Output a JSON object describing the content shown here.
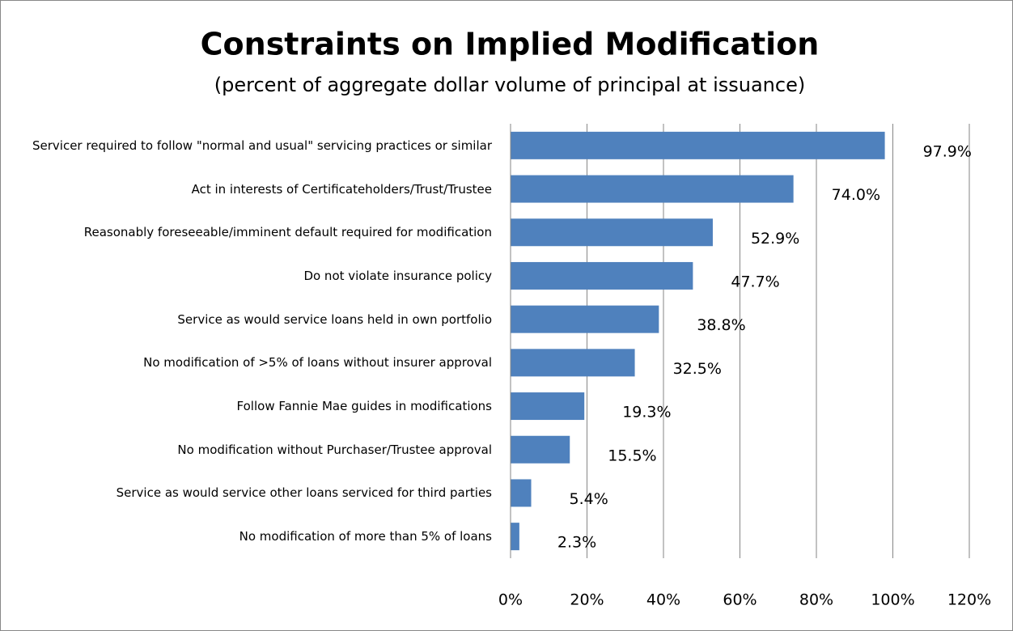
{
  "chart_data": {
    "type": "bar",
    "orientation": "horizontal",
    "title": "Constraints on Implied Modification",
    "subtitle": "(percent of aggregate dollar volume of principal at issuance)",
    "categories": [
      "Servicer required to follow \"normal and usual\" servicing practices or similar",
      "Act in interests of Certificateholders/Trust/Trustee",
      "Reasonably foreseeable/imminent default required for modification",
      "Do not violate insurance policy",
      "Service as would service loans held in own portfolio",
      "No modification of >5% of loans without insurer approval",
      "Follow Fannie Mae guides in modifications",
      "No modification without Purchaser/Trustee approval",
      "Service as would service other loans serviced for third parties",
      "No modification of more than 5% of loans"
    ],
    "values": [
      97.9,
      74.0,
      52.9,
      47.7,
      38.8,
      32.5,
      19.3,
      15.5,
      5.4,
      2.3
    ],
    "value_labels": [
      "97.9%",
      "74.0%",
      "52.9%",
      "47.7%",
      "38.8%",
      "32.5%",
      "19.3%",
      "15.5%",
      "5.4%",
      "2.3%"
    ],
    "color": "#4f81bd",
    "xlim": [
      0,
      120
    ],
    "xticks": [
      {
        "value": 0,
        "label": "0%"
      },
      {
        "value": 20,
        "label": "20%"
      },
      {
        "value": 40,
        "label": "40%"
      },
      {
        "value": 60,
        "label": "60%"
      },
      {
        "value": 80,
        "label": "80%"
      },
      {
        "value": 100,
        "label": "100%"
      },
      {
        "value": 120,
        "label": "120%"
      }
    ],
    "grid": true
  }
}
